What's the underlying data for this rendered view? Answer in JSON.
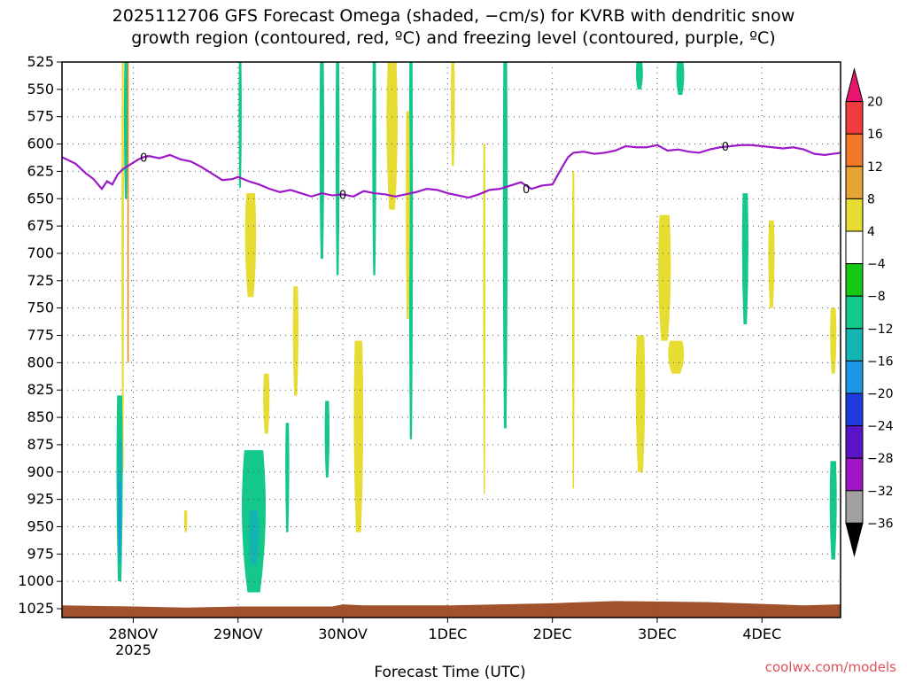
{
  "chart_data": {
    "type": "heatmap",
    "title": [
      "2025112706 GFS Forecast Omega (shaded, −cm/s) for KVRB with dendritic snow",
      "growth region (contoured, red, ºC) and freezing level (contoured, purple, ºC)"
    ],
    "xlabel": "Forecast Time (UTC)",
    "credit": "coolwx.com/models",
    "y_ticks": [
      "525",
      "550",
      "575",
      "600",
      "625",
      "650",
      "675",
      "700",
      "725",
      "750",
      "775",
      "800",
      "825",
      "850",
      "875",
      "900",
      "925",
      "950",
      "975",
      "1000",
      "1025"
    ],
    "ylim": [
      525,
      1025
    ],
    "xlim": [
      -0.68,
      6.75
    ],
    "x_ticks": [
      {
        "pos": 0,
        "label": "28NOV",
        "sub": "2025"
      },
      {
        "pos": 1,
        "label": "29NOV",
        "sub": ""
      },
      {
        "pos": 2,
        "label": "30NOV",
        "sub": ""
      },
      {
        "pos": 3,
        "label": "1DEC",
        "sub": ""
      },
      {
        "pos": 4,
        "label": "2DEC",
        "sub": ""
      },
      {
        "pos": 5,
        "label": "3DEC",
        "sub": ""
      },
      {
        "pos": 6,
        "label": "4DEC",
        "sub": ""
      }
    ],
    "grid": true,
    "colorbar": {
      "labels": [
        "20",
        "16",
        "12",
        "8",
        "4",
        "−4",
        "−8",
        "−12",
        "−16",
        "−20",
        "−24",
        "−28",
        "−32",
        "−36"
      ],
      "colors": [
        "#e8146e",
        "#f03c3c",
        "#f07828",
        "#e6a532",
        "#e6dc32",
        "#ffffff",
        "#14c814",
        "#14c88c",
        "#14b4b4",
        "#1e96e6",
        "#1e3cdc",
        "#5a14c8",
        "#a014c8",
        "#a0a0a0",
        "#000000"
      ]
    },
    "freezing_level": {
      "label": "0",
      "color": "#9b19c8",
      "x": [
        -0.68,
        -0.55,
        -0.45,
        -0.38,
        -0.3,
        -0.25,
        -0.2,
        -0.15,
        -0.1,
        -0.05,
        0,
        0.05,
        0.1,
        0.15,
        0.25,
        0.35,
        0.45,
        0.55,
        0.65,
        0.75,
        0.85,
        0.95,
        1.0,
        1.1,
        1.2,
        1.3,
        1.4,
        1.5,
        1.6,
        1.7,
        1.8,
        1.9,
        2.0,
        2.1,
        2.2,
        2.3,
        2.4,
        2.5,
        2.6,
        2.7,
        2.8,
        2.9,
        3.0,
        3.1,
        3.2,
        3.3,
        3.4,
        3.5,
        3.6,
        3.7,
        3.8,
        3.9,
        4.0,
        4.1,
        4.15,
        4.2,
        4.3,
        4.4,
        4.5,
        4.6,
        4.7,
        4.8,
        4.9,
        5.0,
        5.1,
        5.2,
        5.3,
        5.4,
        5.5,
        5.6,
        5.7,
        5.8,
        5.9,
        6.0,
        6.1,
        6.2,
        6.3,
        6.4,
        6.5,
        6.6,
        6.75
      ],
      "y": [
        612,
        618,
        627,
        632,
        641,
        634,
        637,
        628,
        623,
        620,
        617,
        614,
        612,
        611,
        613,
        610,
        614,
        616,
        621,
        627,
        633,
        632,
        630,
        634,
        637,
        641,
        644,
        642,
        645,
        648,
        645,
        647,
        646,
        648,
        643,
        645,
        646,
        648,
        646,
        644,
        641,
        642,
        645,
        647,
        649,
        646,
        642,
        641,
        638,
        635,
        641,
        638,
        637,
        620,
        612,
        608,
        607,
        609,
        608,
        606,
        602,
        603,
        603,
        601,
        606,
        605,
        607,
        608,
        605,
        603,
        602,
        601,
        601,
        602,
        603,
        604,
        603,
        605,
        609,
        610,
        608
      ]
    },
    "dgz_color": "#e08228",
    "omega_fills": [
      {
        "value": 5,
        "x": -0.1,
        "y_top": 525,
        "y_bot": 900,
        "w": 0.03
      },
      {
        "value": -8,
        "x": -0.07,
        "y_top": 525,
        "y_bot": 650,
        "w": 0.05
      },
      {
        "value": -8,
        "x": -0.13,
        "y_top": 830,
        "y_bot": 1000,
        "w": 0.08
      },
      {
        "value": -14,
        "x": -0.13,
        "y_top": 870,
        "y_bot": 985,
        "w": 0.05
      },
      {
        "value": -18,
        "x": -0.13,
        "y_top": 910,
        "y_bot": 975,
        "w": 0.03
      },
      {
        "value": 5,
        "x": 0.5,
        "y_top": 935,
        "y_bot": 955,
        "w": 0.04
      },
      {
        "value": 5,
        "x": 1.12,
        "y_top": 645,
        "y_bot": 740,
        "w": 0.14
      },
      {
        "value": -8,
        "x": 1.15,
        "y_top": 880,
        "y_bot": 1010,
        "w": 0.3
      },
      {
        "value": -14,
        "x": 1.15,
        "y_top": 935,
        "y_bot": 985,
        "w": 0.12
      },
      {
        "value": 5,
        "x": 1.27,
        "y_top": 810,
        "y_bot": 865,
        "w": 0.08
      },
      {
        "value": 5,
        "x": 1.55,
        "y_top": 730,
        "y_bot": 830,
        "w": 0.07
      },
      {
        "value": -8,
        "x": 1.47,
        "y_top": 855,
        "y_bot": 955,
        "w": 0.05
      },
      {
        "value": -8,
        "x": 1.02,
        "y_top": 525,
        "y_bot": 640,
        "w": 0.04
      },
      {
        "value": -8,
        "x": 1.8,
        "y_top": 525,
        "y_bot": 705,
        "w": 0.06
      },
      {
        "value": -8,
        "x": 1.95,
        "y_top": 525,
        "y_bot": 720,
        "w": 0.05
      },
      {
        "value": -8,
        "x": 1.85,
        "y_top": 835,
        "y_bot": 905,
        "w": 0.06
      },
      {
        "value": 5,
        "x": 2.15,
        "y_top": 780,
        "y_bot": 955,
        "w": 0.12
      },
      {
        "value": 5,
        "x": 2.47,
        "y_top": 525,
        "y_bot": 660,
        "w": 0.14
      },
      {
        "value": -8,
        "x": 2.3,
        "y_top": 525,
        "y_bot": 720,
        "w": 0.05
      },
      {
        "value": -8,
        "x": 2.65,
        "y_top": 525,
        "y_bot": 870,
        "w": 0.05
      },
      {
        "value": 5,
        "x": 2.62,
        "y_top": 570,
        "y_bot": 760,
        "w": 0.05
      },
      {
        "value": 5,
        "x": 3.05,
        "y_top": 525,
        "y_bot": 620,
        "w": 0.05
      },
      {
        "value": -8,
        "x": 3.55,
        "y_top": 525,
        "y_bot": 860,
        "w": 0.06
      },
      {
        "value": 5,
        "x": 3.35,
        "y_top": 600,
        "y_bot": 920,
        "w": 0.03
      },
      {
        "value": 5,
        "x": 4.2,
        "y_top": 625,
        "y_bot": 915,
        "w": 0.03
      },
      {
        "value": -8,
        "x": 4.83,
        "y_top": 525,
        "y_bot": 550,
        "w": 0.09
      },
      {
        "value": -8,
        "x": 5.22,
        "y_top": 525,
        "y_bot": 555,
        "w": 0.1
      },
      {
        "value": 5,
        "x": 5.07,
        "y_top": 665,
        "y_bot": 780,
        "w": 0.16
      },
      {
        "value": 5,
        "x": 5.18,
        "y_top": 780,
        "y_bot": 810,
        "w": 0.2
      },
      {
        "value": 5,
        "x": 4.84,
        "y_top": 775,
        "y_bot": 900,
        "w": 0.12
      },
      {
        "value": -8,
        "x": 5.84,
        "y_top": 645,
        "y_bot": 765,
        "w": 0.08
      },
      {
        "value": 5,
        "x": 6.09,
        "y_top": 670,
        "y_bot": 750,
        "w": 0.08
      },
      {
        "value": 5,
        "x": 6.68,
        "y_top": 750,
        "y_bot": 810,
        "w": 0.08
      },
      {
        "value": -8,
        "x": 6.68,
        "y_top": 890,
        "y_bot": 980,
        "w": 0.09
      }
    ],
    "surface_color": "#a0522d"
  }
}
